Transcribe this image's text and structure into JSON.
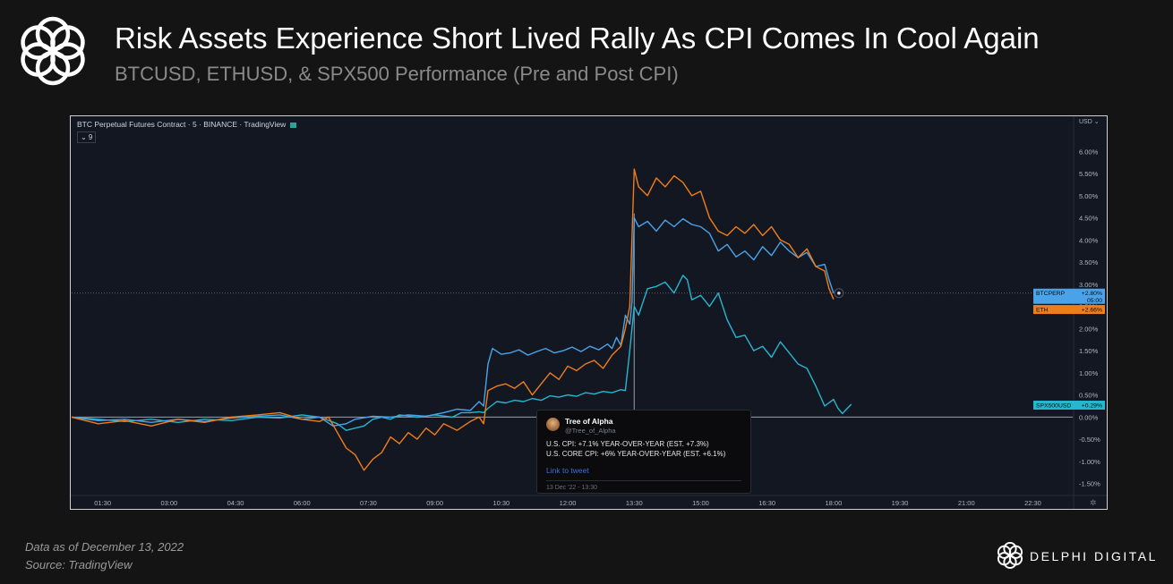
{
  "header": {
    "title": "Risk Assets Experience Short Lived Rally As CPI Comes In Cool Again",
    "subtitle": "BTCUSD, ETHUSD, & SPX500 Performance (Pre and Post CPI)"
  },
  "chart_header": {
    "symbol_label": "BTC Perpetual Futures Contract · 5 · BINANCE · TradingView",
    "indicator_count": "⌄ 9",
    "currency_label": "USD ⌄"
  },
  "tweet": {
    "name": "Tree of Alpha",
    "handle": "@Tree_of_Alpha",
    "line1": "U.S. CPI: +7.1% YEAR-OVER-YEAR (EST. +7.3%)",
    "line2": "U.S. CORE CPI: +6% YEAR-OVER-YEAR (EST. +6.1%)",
    "link": "Link to tweet",
    "date": "13 Dec '22 - 13:30"
  },
  "footer": {
    "data_note": "Data as of December 13, 2022",
    "source": "Source: TradingView"
  },
  "brand": {
    "name": "DELPHI DIGITAL"
  },
  "colors": {
    "background": "#141414",
    "chart_bg": "#131722",
    "btc": "#4aa3e8",
    "eth": "#f07d1a",
    "spx": "#26b6cf",
    "axis_text": "#b2b5be",
    "ai_text": "#787b86"
  },
  "chart_data": {
    "type": "line",
    "title": "BTC Perpetual Futures Contract · 5 · BINANCE · TradingView",
    "ylabel": "USD",
    "ylim": [
      -1.75,
      6.35
    ],
    "y_ticks": [
      "6.00%",
      "5.50%",
      "5.00%",
      "4.50%",
      "4.00%",
      "3.50%",
      "3.00%",
      "2.50%",
      "2.00%",
      "1.50%",
      "1.00%",
      "0.50%",
      "0.00%",
      "-0.50%",
      "-1.00%",
      "-1.50%"
    ],
    "y_tick_values": [
      6.0,
      5.5,
      5.0,
      4.5,
      4.0,
      3.5,
      3.0,
      2.5,
      2.0,
      1.5,
      1.0,
      0.5,
      0.0,
      -0.5,
      -1.0,
      -1.5
    ],
    "x_hours_range": [
      0.8,
      23.4
    ],
    "x_ticks": [
      "01:30",
      "03:00",
      "04:30",
      "06:00",
      "07:30",
      "09:00",
      "10:30",
      "12:00",
      "13:30",
      "15:00",
      "16:30",
      "18:00",
      "19:30",
      "21:00",
      "22:30"
    ],
    "x_tick_hours": [
      1.5,
      3.0,
      4.5,
      6.0,
      7.5,
      9.0,
      10.5,
      12.0,
      13.5,
      15.0,
      16.5,
      18.0,
      19.5,
      21.0,
      22.5
    ],
    "event_line_hour": 13.5,
    "crosshair_value": 2.8,
    "series": [
      {
        "name": "BTCPERP",
        "badge_value": "+2.80%",
        "badge_extra": "05:00",
        "color": "#4aa3e8",
        "points": [
          [
            0.8,
            0.0
          ],
          [
            1.4,
            -0.08
          ],
          [
            2.0,
            -0.05
          ],
          [
            2.6,
            -0.12
          ],
          [
            3.2,
            -0.05
          ],
          [
            3.8,
            -0.1
          ],
          [
            4.4,
            -0.02
          ],
          [
            5.0,
            0.02
          ],
          [
            5.5,
            0.05
          ],
          [
            6.0,
            -0.05
          ],
          [
            6.4,
            0.0
          ],
          [
            6.7,
            -0.2
          ],
          [
            7.0,
            -0.15
          ],
          [
            7.2,
            -0.05
          ],
          [
            7.6,
            0.02
          ],
          [
            8.0,
            0.0
          ],
          [
            8.4,
            0.05
          ],
          [
            8.8,
            0.02
          ],
          [
            9.2,
            0.1
          ],
          [
            9.5,
            0.18
          ],
          [
            9.8,
            0.15
          ],
          [
            10.0,
            0.35
          ],
          [
            10.1,
            0.25
          ],
          [
            10.2,
            1.2
          ],
          [
            10.3,
            1.55
          ],
          [
            10.5,
            1.42
          ],
          [
            10.7,
            1.45
          ],
          [
            10.9,
            1.52
          ],
          [
            11.1,
            1.4
          ],
          [
            11.3,
            1.48
          ],
          [
            11.5,
            1.55
          ],
          [
            11.7,
            1.45
          ],
          [
            11.9,
            1.5
          ],
          [
            12.1,
            1.58
          ],
          [
            12.3,
            1.48
          ],
          [
            12.5,
            1.6
          ],
          [
            12.7,
            1.52
          ],
          [
            12.9,
            1.65
          ],
          [
            13.0,
            1.55
          ],
          [
            13.1,
            1.8
          ],
          [
            13.2,
            1.62
          ],
          [
            13.3,
            2.3
          ],
          [
            13.4,
            2.1
          ],
          [
            13.45,
            2.6
          ],
          [
            13.5,
            4.5
          ],
          [
            13.6,
            4.3
          ],
          [
            13.8,
            4.42
          ],
          [
            14.0,
            4.2
          ],
          [
            14.2,
            4.45
          ],
          [
            14.4,
            4.3
          ],
          [
            14.6,
            4.48
          ],
          [
            14.8,
            4.35
          ],
          [
            15.0,
            4.3
          ],
          [
            15.2,
            4.15
          ],
          [
            15.4,
            3.75
          ],
          [
            15.6,
            3.9
          ],
          [
            15.8,
            3.62
          ],
          [
            16.0,
            3.75
          ],
          [
            16.2,
            3.55
          ],
          [
            16.4,
            3.85
          ],
          [
            16.6,
            3.65
          ],
          [
            16.8,
            3.95
          ],
          [
            17.0,
            3.75
          ],
          [
            17.2,
            3.6
          ],
          [
            17.4,
            3.72
          ],
          [
            17.6,
            3.4
          ],
          [
            17.8,
            3.45
          ],
          [
            17.9,
            3.1
          ],
          [
            18.0,
            2.8
          ]
        ]
      },
      {
        "name": "ETH",
        "badge_value": "+2.66%",
        "color": "#f07d1a",
        "points": [
          [
            0.8,
            0.0
          ],
          [
            1.4,
            -0.15
          ],
          [
            2.0,
            -0.08
          ],
          [
            2.6,
            -0.2
          ],
          [
            3.2,
            -0.05
          ],
          [
            3.8,
            -0.12
          ],
          [
            4.4,
            0.0
          ],
          [
            5.0,
            0.05
          ],
          [
            5.5,
            0.1
          ],
          [
            6.0,
            -0.05
          ],
          [
            6.4,
            -0.1
          ],
          [
            6.6,
            0.0
          ],
          [
            6.8,
            -0.35
          ],
          [
            7.0,
            -0.7
          ],
          [
            7.2,
            -0.85
          ],
          [
            7.4,
            -1.2
          ],
          [
            7.6,
            -0.95
          ],
          [
            7.8,
            -0.8
          ],
          [
            8.0,
            -0.45
          ],
          [
            8.2,
            -0.6
          ],
          [
            8.4,
            -0.35
          ],
          [
            8.6,
            -0.5
          ],
          [
            8.8,
            -0.25
          ],
          [
            9.0,
            -0.4
          ],
          [
            9.2,
            -0.15
          ],
          [
            9.5,
            -0.3
          ],
          [
            9.8,
            -0.1
          ],
          [
            10.0,
            0.0
          ],
          [
            10.1,
            -0.15
          ],
          [
            10.2,
            0.6
          ],
          [
            10.4,
            0.7
          ],
          [
            10.6,
            0.75
          ],
          [
            10.8,
            0.65
          ],
          [
            11.0,
            0.8
          ],
          [
            11.2,
            0.5
          ],
          [
            11.4,
            0.75
          ],
          [
            11.6,
            1.0
          ],
          [
            11.8,
            0.85
          ],
          [
            12.0,
            1.15
          ],
          [
            12.2,
            1.05
          ],
          [
            12.4,
            1.2
          ],
          [
            12.6,
            1.28
          ],
          [
            12.8,
            1.1
          ],
          [
            13.0,
            1.4
          ],
          [
            13.2,
            1.6
          ],
          [
            13.3,
            2.0
          ],
          [
            13.4,
            2.5
          ],
          [
            13.5,
            5.6
          ],
          [
            13.6,
            5.2
          ],
          [
            13.8,
            5.0
          ],
          [
            14.0,
            5.4
          ],
          [
            14.2,
            5.2
          ],
          [
            14.4,
            5.45
          ],
          [
            14.6,
            5.3
          ],
          [
            14.8,
            5.0
          ],
          [
            15.0,
            5.1
          ],
          [
            15.2,
            4.5
          ],
          [
            15.4,
            4.2
          ],
          [
            15.6,
            4.1
          ],
          [
            15.8,
            4.3
          ],
          [
            16.0,
            4.15
          ],
          [
            16.2,
            4.35
          ],
          [
            16.4,
            4.1
          ],
          [
            16.6,
            4.3
          ],
          [
            16.8,
            4.0
          ],
          [
            17.0,
            3.9
          ],
          [
            17.2,
            3.6
          ],
          [
            17.4,
            3.8
          ],
          [
            17.6,
            3.4
          ],
          [
            17.8,
            3.3
          ],
          [
            17.9,
            2.9
          ],
          [
            18.0,
            2.66
          ]
        ]
      },
      {
        "name": "SPX500USD",
        "badge_value": "+0.29%",
        "color": "#26b6cf",
        "points": [
          [
            0.8,
            0.0
          ],
          [
            1.4,
            -0.05
          ],
          [
            2.0,
            -0.1
          ],
          [
            2.6,
            -0.05
          ],
          [
            3.2,
            -0.12
          ],
          [
            3.8,
            -0.05
          ],
          [
            4.4,
            -0.08
          ],
          [
            5.0,
            0.0
          ],
          [
            5.5,
            -0.02
          ],
          [
            6.0,
            0.05
          ],
          [
            6.4,
            0.0
          ],
          [
            6.8,
            -0.15
          ],
          [
            7.0,
            -0.3
          ],
          [
            7.2,
            -0.25
          ],
          [
            7.4,
            -0.2
          ],
          [
            7.6,
            -0.05
          ],
          [
            7.8,
            0.0
          ],
          [
            8.0,
            -0.05
          ],
          [
            8.2,
            0.05
          ],
          [
            8.6,
            0.0
          ],
          [
            9.0,
            0.05
          ],
          [
            9.4,
            0.0
          ],
          [
            9.6,
            0.1
          ],
          [
            9.8,
            0.1
          ],
          [
            10.0,
            0.12
          ],
          [
            10.1,
            0.1
          ],
          [
            10.2,
            0.2
          ],
          [
            10.4,
            0.35
          ],
          [
            10.6,
            0.32
          ],
          [
            10.8,
            0.38
          ],
          [
            11.0,
            0.35
          ],
          [
            11.2,
            0.42
          ],
          [
            11.4,
            0.38
          ],
          [
            11.6,
            0.48
          ],
          [
            11.8,
            0.45
          ],
          [
            12.0,
            0.5
          ],
          [
            12.2,
            0.47
          ],
          [
            12.4,
            0.55
          ],
          [
            12.6,
            0.52
          ],
          [
            12.8,
            0.58
          ],
          [
            13.0,
            0.55
          ],
          [
            13.2,
            0.62
          ],
          [
            13.3,
            0.6
          ],
          [
            13.4,
            1.5
          ],
          [
            13.5,
            2.5
          ],
          [
            13.6,
            2.3
          ],
          [
            13.8,
            2.9
          ],
          [
            14.0,
            2.95
          ],
          [
            14.2,
            3.05
          ],
          [
            14.4,
            2.8
          ],
          [
            14.6,
            3.2
          ],
          [
            14.7,
            3.1
          ],
          [
            14.8,
            2.65
          ],
          [
            15.0,
            2.75
          ],
          [
            15.2,
            2.5
          ],
          [
            15.4,
            2.8
          ],
          [
            15.6,
            2.2
          ],
          [
            15.8,
            1.8
          ],
          [
            16.0,
            1.85
          ],
          [
            16.2,
            1.5
          ],
          [
            16.4,
            1.6
          ],
          [
            16.6,
            1.35
          ],
          [
            16.8,
            1.7
          ],
          [
            17.0,
            1.45
          ],
          [
            17.2,
            1.2
          ],
          [
            17.4,
            1.1
          ],
          [
            17.6,
            0.7
          ],
          [
            17.8,
            0.25
          ],
          [
            18.0,
            0.4
          ],
          [
            18.1,
            0.2
          ],
          [
            18.2,
            0.08
          ],
          [
            18.4,
            0.29
          ]
        ]
      }
    ]
  }
}
